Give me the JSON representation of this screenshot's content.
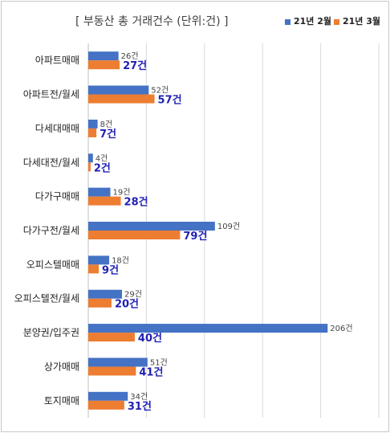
{
  "chart_data": {
    "type": "bar",
    "orientation": "horizontal",
    "title": "[ 부동산 총 거래건수 (단위:건) ]",
    "categories": [
      "아파트매매",
      "아파트전/월세",
      "다세대매매",
      "다세대전/월세",
      "다가구매매",
      "다가구전/월세",
      "오피스텔매매",
      "오피스텔전/월세",
      "분양권/입주권",
      "상가매매",
      "토지매매"
    ],
    "series": [
      {
        "name": "21년 2월",
        "color": "#4472c4",
        "values": [
          26,
          52,
          8,
          4,
          19,
          109,
          18,
          29,
          206,
          51,
          34
        ],
        "labels": [
          "26건",
          "52건",
          "8건",
          "4건",
          "19건",
          "109건",
          "18건",
          "29건",
          "206건",
          "51건",
          "34건"
        ]
      },
      {
        "name": "21년 3월",
        "color": "#ed7d31",
        "values": [
          27,
          57,
          7,
          2,
          28,
          79,
          9,
          20,
          40,
          41,
          31
        ],
        "labels": [
          "27건",
          "57건",
          "7건",
          "2건",
          "28건",
          "79건",
          "9건",
          "20건",
          "40건",
          "41건",
          "31건"
        ]
      }
    ],
    "xlim": [
      0,
      250
    ],
    "grid": true,
    "legend_position": "top-right"
  }
}
